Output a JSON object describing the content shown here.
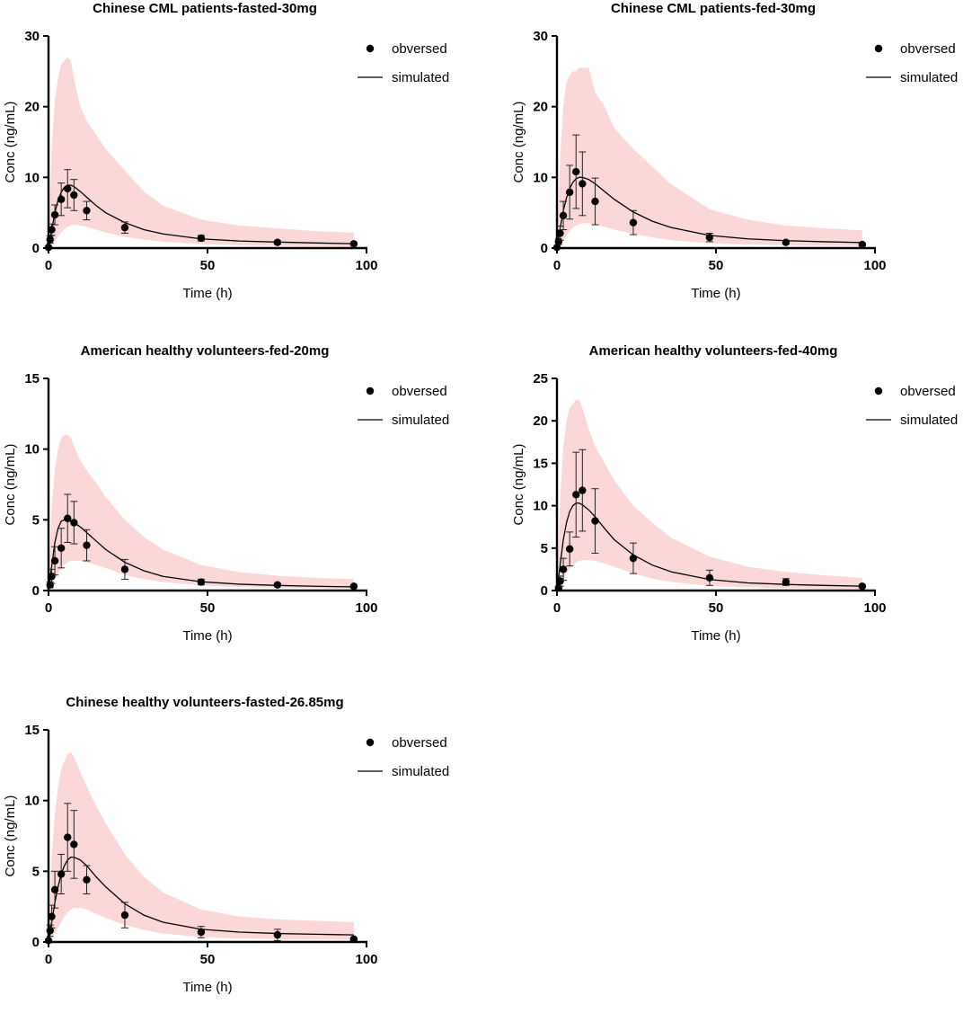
{
  "legend": {
    "observed_label": "obversed",
    "simulated_label": "simulated"
  },
  "colors": {
    "band": "#f9c9c9",
    "line": "#000000",
    "marker": "#000000"
  },
  "chart_data": [
    {
      "type": "line",
      "title": "Chinese CML patients-fasted-30mg",
      "xlabel": "Time (h)",
      "ylabel": "Conc (ng/mL)",
      "xlim": [
        0,
        100
      ],
      "ylim": [
        0,
        30
      ],
      "xticks": [
        0,
        50,
        100
      ],
      "yticks": [
        0,
        10,
        20,
        30
      ],
      "observed": [
        {
          "x": 0,
          "y": 0.1,
          "err": 0
        },
        {
          "x": 0.5,
          "y": 1.2,
          "err": 0.5
        },
        {
          "x": 1,
          "y": 2.6,
          "err": 0.8
        },
        {
          "x": 2,
          "y": 4.7,
          "err": 1.4
        },
        {
          "x": 4,
          "y": 6.9,
          "err": 2.3
        },
        {
          "x": 6,
          "y": 8.4,
          "err": 2.7
        },
        {
          "x": 8,
          "y": 7.5,
          "err": 2.2
        },
        {
          "x": 12,
          "y": 5.3,
          "err": 1.3
        },
        {
          "x": 24,
          "y": 2.9,
          "err": 0.8
        },
        {
          "x": 48,
          "y": 1.4,
          "err": 0.4
        },
        {
          "x": 72,
          "y": 0.8,
          "err": 0.2
        },
        {
          "x": 96,
          "y": 0.6,
          "err": 0.2
        }
      ],
      "simulated": {
        "x": [
          0,
          1,
          2,
          3,
          4,
          5,
          6,
          7,
          8,
          10,
          12,
          15,
          18,
          24,
          30,
          36,
          48,
          60,
          72,
          84,
          96
        ],
        "y": [
          0,
          2.5,
          5.0,
          6.8,
          7.9,
          8.6,
          8.9,
          8.9,
          8.7,
          8.0,
          7.2,
          6.0,
          5.0,
          3.6,
          2.6,
          2.0,
          1.3,
          1.0,
          0.85,
          0.72,
          0.62
        ],
        "lower": [
          0,
          0.4,
          1.0,
          1.6,
          2.2,
          2.7,
          3.0,
          3.2,
          3.3,
          3.2,
          3.0,
          2.6,
          2.2,
          1.6,
          1.2,
          0.9,
          0.55,
          0.4,
          0.3,
          0.25,
          0.2
        ],
        "upper": [
          0,
          14,
          21,
          24,
          26,
          26.5,
          27,
          26.5,
          24,
          20,
          18,
          16,
          14,
          11,
          8,
          6,
          4,
          3.2,
          2.8,
          2.4,
          2.2
        ]
      }
    },
    {
      "type": "line",
      "title": "Chinese CML patients-fed-30mg",
      "xlabel": "Time (h)",
      "ylabel": "Conc (ng/mL)",
      "xlim": [
        0,
        100
      ],
      "ylim": [
        0,
        30
      ],
      "xticks": [
        0,
        50,
        100
      ],
      "yticks": [
        0,
        10,
        20,
        30
      ],
      "observed": [
        {
          "x": 0,
          "y": 0.1,
          "err": 0
        },
        {
          "x": 0.5,
          "y": 0.9,
          "err": 0.4
        },
        {
          "x": 1,
          "y": 2.1,
          "err": 1.0
        },
        {
          "x": 2,
          "y": 4.6,
          "err": 2.0
        },
        {
          "x": 4,
          "y": 7.9,
          "err": 3.8
        },
        {
          "x": 6,
          "y": 10.8,
          "err": 5.2
        },
        {
          "x": 8,
          "y": 9.1,
          "err": 4.5
        },
        {
          "x": 12,
          "y": 6.6,
          "err": 3.3
        },
        {
          "x": 24,
          "y": 3.6,
          "err": 1.7
        },
        {
          "x": 48,
          "y": 1.5,
          "err": 0.6
        },
        {
          "x": 72,
          "y": 0.8,
          "err": 0.2
        },
        {
          "x": 96,
          "y": 0.5,
          "err": 0.2
        }
      ],
      "simulated": {
        "x": [
          0,
          1,
          2,
          3,
          4,
          5,
          6,
          7,
          8,
          10,
          12,
          15,
          18,
          24,
          30,
          36,
          48,
          60,
          72,
          84,
          96
        ],
        "y": [
          0,
          2.8,
          5.3,
          7.1,
          8.4,
          9.3,
          9.8,
          10.0,
          10.0,
          9.7,
          9.1,
          8.0,
          6.9,
          5.1,
          3.8,
          2.9,
          1.8,
          1.3,
          1.05,
          0.9,
          0.78
        ],
        "lower": [
          0,
          0.4,
          1.1,
          1.8,
          2.4,
          2.9,
          3.2,
          3.4,
          3.5,
          3.5,
          3.3,
          3.0,
          2.6,
          2.0,
          1.5,
          1.1,
          0.7,
          0.5,
          0.4,
          0.32,
          0.27
        ],
        "upper": [
          0,
          13,
          20,
          23.5,
          24.5,
          25,
          25,
          25.5,
          25.5,
          25.5,
          22,
          20,
          17,
          14,
          11.5,
          9,
          5.5,
          4,
          3.2,
          2.8,
          2.5
        ]
      }
    },
    {
      "type": "line",
      "title": "American healthy volunteers-fed-20mg",
      "xlabel": "Time (h)",
      "ylabel": "Conc (ng/mL)",
      "xlim": [
        0,
        100
      ],
      "ylim": [
        0,
        15
      ],
      "xticks": [
        0,
        50,
        100
      ],
      "yticks": [
        0,
        5,
        10,
        15
      ],
      "observed": [
        {
          "x": 0.5,
          "y": 0.4,
          "err": 0.2
        },
        {
          "x": 1,
          "y": 1.0,
          "err": 0.5
        },
        {
          "x": 2,
          "y": 2.1,
          "err": 1.0
        },
        {
          "x": 4,
          "y": 3.0,
          "err": 1.4
        },
        {
          "x": 6,
          "y": 5.1,
          "err": 1.7
        },
        {
          "x": 8,
          "y": 4.8,
          "err": 1.5
        },
        {
          "x": 12,
          "y": 3.2,
          "err": 1.1
        },
        {
          "x": 24,
          "y": 1.5,
          "err": 0.7
        },
        {
          "x": 48,
          "y": 0.6,
          "err": 0.2
        },
        {
          "x": 72,
          "y": 0.4,
          "err": 0.1
        },
        {
          "x": 96,
          "y": 0.3,
          "err": 0.1
        }
      ],
      "simulated": {
        "x": [
          0,
          1,
          2,
          3,
          4,
          5,
          6,
          7,
          8,
          10,
          12,
          15,
          18,
          24,
          30,
          36,
          48,
          60,
          72,
          84,
          96
        ],
        "y": [
          0,
          1.7,
          3.4,
          4.4,
          4.9,
          5.0,
          5.0,
          4.9,
          4.8,
          4.5,
          4.1,
          3.5,
          2.9,
          2.0,
          1.4,
          1.0,
          0.62,
          0.45,
          0.36,
          0.3,
          0.26
        ],
        "lower": [
          0,
          0.3,
          0.8,
          1.2,
          1.6,
          1.8,
          2.0,
          2.1,
          2.1,
          2.1,
          2.0,
          1.8,
          1.6,
          1.1,
          0.8,
          0.6,
          0.35,
          0.25,
          0.2,
          0.16,
          0.13
        ],
        "upper": [
          0,
          6,
          8.5,
          10,
          10.8,
          11,
          11,
          10.8,
          10.2,
          9.2,
          8.5,
          7.6,
          6.6,
          5.0,
          3.8,
          2.9,
          1.8,
          1.3,
          1.05,
          0.9,
          0.8
        ]
      }
    },
    {
      "type": "line",
      "title": "American healthy volunteers-fed-40mg",
      "xlabel": "Time (h)",
      "ylabel": "Conc (ng/mL)",
      "xlim": [
        0,
        100
      ],
      "ylim": [
        0,
        25
      ],
      "xticks": [
        0,
        50,
        100
      ],
      "yticks": [
        0,
        5,
        10,
        15,
        20,
        25
      ],
      "observed": [
        {
          "x": 0.5,
          "y": 0.3,
          "err": 0.2
        },
        {
          "x": 1,
          "y": 1.1,
          "err": 0.6
        },
        {
          "x": 2,
          "y": 2.5,
          "err": 1.3
        },
        {
          "x": 4,
          "y": 4.9,
          "err": 2.0
        },
        {
          "x": 6,
          "y": 11.3,
          "err": 5.0
        },
        {
          "x": 8,
          "y": 11.8,
          "err": 4.8
        },
        {
          "x": 12,
          "y": 8.2,
          "err": 3.8
        },
        {
          "x": 24,
          "y": 3.8,
          "err": 1.8
        },
        {
          "x": 48,
          "y": 1.5,
          "err": 0.9
        },
        {
          "x": 72,
          "y": 1.0,
          "err": 0.4
        },
        {
          "x": 96,
          "y": 0.5,
          "err": 0.1
        }
      ],
      "simulated": {
        "x": [
          0,
          1,
          2,
          3,
          4,
          5,
          6,
          7,
          8,
          10,
          12,
          15,
          18,
          24,
          30,
          36,
          48,
          60,
          72,
          84,
          96
        ],
        "y": [
          0,
          3.0,
          6.0,
          8.0,
          9.3,
          10.0,
          10.3,
          10.3,
          10.1,
          9.5,
          8.7,
          7.3,
          6.0,
          4.2,
          3.0,
          2.2,
          1.3,
          0.9,
          0.72,
          0.6,
          0.52
        ],
        "lower": [
          0,
          0.5,
          1.2,
          2.0,
          2.6,
          3.0,
          3.3,
          3.5,
          3.6,
          3.6,
          3.5,
          3.2,
          2.8,
          2.0,
          1.4,
          1.0,
          0.55,
          0.38,
          0.28,
          0.22,
          0.18
        ],
        "upper": [
          0,
          11,
          17,
          20,
          21.5,
          22,
          22.5,
          22.5,
          21.5,
          19,
          17,
          15,
          13,
          10,
          8,
          6.2,
          4,
          2.8,
          2.2,
          1.8,
          1.5
        ]
      }
    },
    {
      "type": "line",
      "title": "Chinese healthy volunteers-fasted-26.85mg",
      "xlabel": "Time (h)",
      "ylabel": "Conc (ng/mL)",
      "xlim": [
        0,
        100
      ],
      "ylim": [
        0,
        15
      ],
      "xticks": [
        0,
        50,
        100
      ],
      "yticks": [
        0,
        5,
        10,
        15
      ],
      "observed": [
        {
          "x": 0,
          "y": 0.1,
          "err": 0
        },
        {
          "x": 0.5,
          "y": 0.8,
          "err": 0.4
        },
        {
          "x": 1,
          "y": 1.8,
          "err": 0.8
        },
        {
          "x": 2,
          "y": 3.7,
          "err": 1.3
        },
        {
          "x": 4,
          "y": 4.8,
          "err": 1.4
        },
        {
          "x": 6,
          "y": 7.4,
          "err": 2.4
        },
        {
          "x": 8,
          "y": 6.9,
          "err": 2.4
        },
        {
          "x": 12,
          "y": 4.4,
          "err": 1.0
        },
        {
          "x": 24,
          "y": 1.9,
          "err": 0.9
        },
        {
          "x": 48,
          "y": 0.7,
          "err": 0.4
        },
        {
          "x": 72,
          "y": 0.5,
          "err": 0.4
        },
        {
          "x": 96,
          "y": 0.2,
          "err": 0.1
        }
      ],
      "simulated": {
        "x": [
          0,
          1,
          2,
          3,
          4,
          5,
          6,
          7,
          8,
          10,
          12,
          15,
          18,
          24,
          30,
          36,
          48,
          60,
          72,
          84,
          96
        ],
        "y": [
          0,
          1.4,
          2.8,
          3.9,
          4.8,
          5.4,
          5.8,
          6.0,
          6.0,
          5.8,
          5.4,
          4.6,
          3.9,
          2.7,
          1.9,
          1.4,
          0.9,
          0.7,
          0.6,
          0.55,
          0.5
        ],
        "lower": [
          0,
          0.3,
          0.6,
          1.0,
          1.4,
          1.8,
          2.1,
          2.3,
          2.4,
          2.4,
          2.3,
          2.0,
          1.7,
          1.2,
          0.85,
          0.6,
          0.35,
          0.25,
          0.2,
          0.17,
          0.15
        ],
        "upper": [
          0,
          6,
          9,
          11,
          12.2,
          12.8,
          13.3,
          13.4,
          13.1,
          12,
          11,
          9.6,
          8.4,
          6.2,
          4.6,
          3.5,
          2.3,
          1.8,
          1.6,
          1.5,
          1.4
        ]
      }
    }
  ]
}
